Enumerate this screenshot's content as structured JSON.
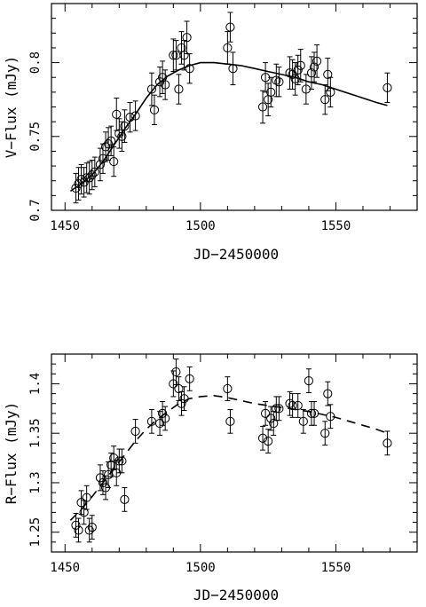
{
  "chart_data": [
    {
      "type": "scatter",
      "xlabel": "JD−2450000",
      "ylabel": "V−Flux (mJy)",
      "xlim": [
        1445,
        1580
      ],
      "ylim": [
        0.7,
        0.84
      ],
      "xticks": [
        "1450",
        "1500",
        "1550"
      ],
      "yticks": [
        "0.7",
        "0.75",
        "0.8"
      ],
      "model_style": "solid",
      "points": [
        {
          "x": 1454,
          "y": 0.715,
          "err": 0.01
        },
        {
          "x": 1455,
          "y": 0.718,
          "err": 0.011
        },
        {
          "x": 1456,
          "y": 0.721,
          "err": 0.01
        },
        {
          "x": 1457,
          "y": 0.719,
          "err": 0.01
        },
        {
          "x": 1458,
          "y": 0.722,
          "err": 0.01
        },
        {
          "x": 1459,
          "y": 0.722,
          "err": 0.011
        },
        {
          "x": 1460,
          "y": 0.724,
          "err": 0.01
        },
        {
          "x": 1461,
          "y": 0.726,
          "err": 0.01
        },
        {
          "x": 1463,
          "y": 0.731,
          "err": 0.011
        },
        {
          "x": 1464,
          "y": 0.735,
          "err": 0.01
        },
        {
          "x": 1465,
          "y": 0.743,
          "err": 0.01
        },
        {
          "x": 1466,
          "y": 0.745,
          "err": 0.011
        },
        {
          "x": 1467,
          "y": 0.747,
          "err": 0.01
        },
        {
          "x": 1468,
          "y": 0.733,
          "err": 0.01
        },
        {
          "x": 1469,
          "y": 0.765,
          "err": 0.011
        },
        {
          "x": 1470,
          "y": 0.752,
          "err": 0.01
        },
        {
          "x": 1471,
          "y": 0.75,
          "err": 0.01
        },
        {
          "x": 1472,
          "y": 0.757,
          "err": 0.011
        },
        {
          "x": 1474,
          "y": 0.763,
          "err": 0.01
        },
        {
          "x": 1476,
          "y": 0.764,
          "err": 0.01
        },
        {
          "x": 1482,
          "y": 0.782,
          "err": 0.011
        },
        {
          "x": 1483,
          "y": 0.768,
          "err": 0.01
        },
        {
          "x": 1485,
          "y": 0.787,
          "err": 0.01
        },
        {
          "x": 1486,
          "y": 0.79,
          "err": 0.011
        },
        {
          "x": 1487,
          "y": 0.785,
          "err": 0.01
        },
        {
          "x": 1490,
          "y": 0.805,
          "err": 0.011
        },
        {
          "x": 1491,
          "y": 0.805,
          "err": 0.01
        },
        {
          "x": 1492,
          "y": 0.782,
          "err": 0.01
        },
        {
          "x": 1493,
          "y": 0.81,
          "err": 0.011
        },
        {
          "x": 1494,
          "y": 0.805,
          "err": 0.01
        },
        {
          "x": 1495,
          "y": 0.817,
          "err": 0.011
        },
        {
          "x": 1496,
          "y": 0.796,
          "err": 0.01
        },
        {
          "x": 1510,
          "y": 0.81,
          "err": 0.011
        },
        {
          "x": 1511,
          "y": 0.824,
          "err": 0.01
        },
        {
          "x": 1512,
          "y": 0.796,
          "err": 0.011
        },
        {
          "x": 1523,
          "y": 0.77,
          "err": 0.011
        },
        {
          "x": 1524,
          "y": 0.79,
          "err": 0.01
        },
        {
          "x": 1525,
          "y": 0.775,
          "err": 0.011
        },
        {
          "x": 1526,
          "y": 0.78,
          "err": 0.01
        },
        {
          "x": 1528,
          "y": 0.788,
          "err": 0.011
        },
        {
          "x": 1529,
          "y": 0.787,
          "err": 0.01
        },
        {
          "x": 1533,
          "y": 0.793,
          "err": 0.011
        },
        {
          "x": 1534,
          "y": 0.792,
          "err": 0.01
        },
        {
          "x": 1535,
          "y": 0.789,
          "err": 0.011
        },
        {
          "x": 1536,
          "y": 0.795,
          "err": 0.01
        },
        {
          "x": 1537,
          "y": 0.798,
          "err": 0.011
        },
        {
          "x": 1539,
          "y": 0.782,
          "err": 0.01
        },
        {
          "x": 1541,
          "y": 0.793,
          "err": 0.011
        },
        {
          "x": 1542,
          "y": 0.797,
          "err": 0.01
        },
        {
          "x": 1543,
          "y": 0.801,
          "err": 0.011
        },
        {
          "x": 1546,
          "y": 0.775,
          "err": 0.01
        },
        {
          "x": 1547,
          "y": 0.792,
          "err": 0.011
        },
        {
          "x": 1548,
          "y": 0.78,
          "err": 0.01
        },
        {
          "x": 1569,
          "y": 0.783,
          "err": 0.01
        }
      ],
      "model_curve": {
        "x": [
          1452,
          1456,
          1460,
          1464,
          1468,
          1472,
          1476,
          1480,
          1484,
          1488,
          1492,
          1496,
          1500,
          1505,
          1510,
          1515,
          1520,
          1525,
          1530,
          1535,
          1540,
          1545,
          1550,
          1555,
          1560,
          1565,
          1569
        ],
        "y": [
          0.713,
          0.718,
          0.724,
          0.733,
          0.744,
          0.755,
          0.765,
          0.776,
          0.785,
          0.791,
          0.795,
          0.798,
          0.8,
          0.8,
          0.799,
          0.798,
          0.796,
          0.794,
          0.792,
          0.79,
          0.787,
          0.785,
          0.782,
          0.779,
          0.776,
          0.773,
          0.771
        ]
      }
    },
    {
      "type": "scatter",
      "xlabel": "JD−2450000",
      "ylabel": "R−Flux (mJy)",
      "xlim": [
        1445,
        1580
      ],
      "ylim": [
        1.23,
        1.43
      ],
      "xticks": [
        "1450",
        "1500",
        "1550"
      ],
      "yticks": [
        "1.25",
        "1.3",
        "1.35",
        "1.4"
      ],
      "model_style": "dashed",
      "points": [
        {
          "x": 1454,
          "y": 1.257,
          "err": 0.012
        },
        {
          "x": 1455,
          "y": 1.252,
          "err": 0.012
        },
        {
          "x": 1456,
          "y": 1.28,
          "err": 0.012
        },
        {
          "x": 1457,
          "y": 1.27,
          "err": 0.012
        },
        {
          "x": 1458,
          "y": 1.285,
          "err": 0.012
        },
        {
          "x": 1459,
          "y": 1.252,
          "err": 0.012
        },
        {
          "x": 1460,
          "y": 1.255,
          "err": 0.012
        },
        {
          "x": 1463,
          "y": 1.305,
          "err": 0.013
        },
        {
          "x": 1464,
          "y": 1.3,
          "err": 0.012
        },
        {
          "x": 1465,
          "y": 1.295,
          "err": 0.012
        },
        {
          "x": 1466,
          "y": 1.308,
          "err": 0.013
        },
        {
          "x": 1467,
          "y": 1.318,
          "err": 0.012
        },
        {
          "x": 1468,
          "y": 1.325,
          "err": 0.012
        },
        {
          "x": 1469,
          "y": 1.31,
          "err": 0.013
        },
        {
          "x": 1470,
          "y": 1.322,
          "err": 0.012
        },
        {
          "x": 1471,
          "y": 1.322,
          "err": 0.012
        },
        {
          "x": 1472,
          "y": 1.283,
          "err": 0.012
        },
        {
          "x": 1476,
          "y": 1.352,
          "err": 0.012
        },
        {
          "x": 1482,
          "y": 1.362,
          "err": 0.012
        },
        {
          "x": 1485,
          "y": 1.36,
          "err": 0.012
        },
        {
          "x": 1486,
          "y": 1.37,
          "err": 0.012
        },
        {
          "x": 1487,
          "y": 1.365,
          "err": 0.012
        },
        {
          "x": 1490,
          "y": 1.4,
          "err": 0.013
        },
        {
          "x": 1491,
          "y": 1.412,
          "err": 0.013
        },
        {
          "x": 1492,
          "y": 1.395,
          "err": 0.012
        },
        {
          "x": 1493,
          "y": 1.38,
          "err": 0.012
        },
        {
          "x": 1494,
          "y": 1.385,
          "err": 0.012
        },
        {
          "x": 1496,
          "y": 1.405,
          "err": 0.012
        },
        {
          "x": 1510,
          "y": 1.395,
          "err": 0.012
        },
        {
          "x": 1511,
          "y": 1.362,
          "err": 0.012
        },
        {
          "x": 1523,
          "y": 1.345,
          "err": 0.012
        },
        {
          "x": 1524,
          "y": 1.37,
          "err": 0.012
        },
        {
          "x": 1525,
          "y": 1.342,
          "err": 0.012
        },
        {
          "x": 1526,
          "y": 1.365,
          "err": 0.012
        },
        {
          "x": 1527,
          "y": 1.36,
          "err": 0.012
        },
        {
          "x": 1528,
          "y": 1.375,
          "err": 0.012
        },
        {
          "x": 1529,
          "y": 1.375,
          "err": 0.012
        },
        {
          "x": 1533,
          "y": 1.38,
          "err": 0.012
        },
        {
          "x": 1534,
          "y": 1.378,
          "err": 0.012
        },
        {
          "x": 1536,
          "y": 1.378,
          "err": 0.012
        },
        {
          "x": 1538,
          "y": 1.362,
          "err": 0.012
        },
        {
          "x": 1540,
          "y": 1.403,
          "err": 0.012
        },
        {
          "x": 1541,
          "y": 1.37,
          "err": 0.012
        },
        {
          "x": 1542,
          "y": 1.37,
          "err": 0.012
        },
        {
          "x": 1546,
          "y": 1.35,
          "err": 0.012
        },
        {
          "x": 1547,
          "y": 1.39,
          "err": 0.012
        },
        {
          "x": 1548,
          "y": 1.367,
          "err": 0.012
        },
        {
          "x": 1569,
          "y": 1.34,
          "err": 0.012
        }
      ],
      "model_curve": {
        "x": [
          1452,
          1456,
          1460,
          1464,
          1468,
          1472,
          1476,
          1480,
          1484,
          1488,
          1492,
          1496,
          1500,
          1505,
          1510,
          1515,
          1520,
          1525,
          1530,
          1535,
          1540,
          1545,
          1550,
          1555,
          1560,
          1565,
          1569
        ],
        "y": [
          1.262,
          1.273,
          1.286,
          1.3,
          1.314,
          1.328,
          1.342,
          1.354,
          1.364,
          1.372,
          1.38,
          1.385,
          1.387,
          1.388,
          1.386,
          1.383,
          1.38,
          1.378,
          1.376,
          1.374,
          1.372,
          1.369,
          1.366,
          1.362,
          1.358,
          1.354,
          1.35
        ]
      }
    }
  ]
}
